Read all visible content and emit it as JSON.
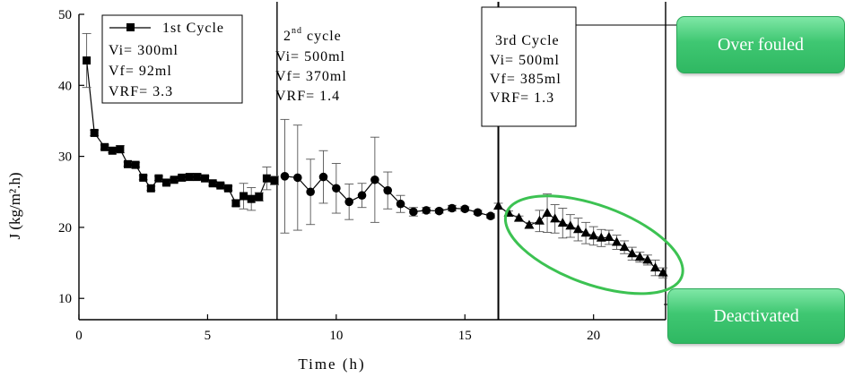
{
  "chart_data": {
    "type": "scatter",
    "title": "",
    "xlabel": "Time (h)",
    "ylabel": "J (kg/m².h)",
    "xlim": [
      0,
      22.8
    ],
    "ylim": [
      7,
      50
    ],
    "xticks": [
      0,
      5,
      10,
      15,
      20
    ],
    "yticks": [
      10,
      20,
      30,
      40,
      50
    ],
    "cycle_boundaries": [
      7.7,
      16.3,
      22.8
    ],
    "series": [
      {
        "marker": "square",
        "x": [
          0.3,
          0.6,
          1.0,
          1.3,
          1.6,
          1.9,
          2.2,
          2.5,
          2.8,
          3.1,
          3.4,
          3.7,
          4.0,
          4.3,
          4.6,
          4.9,
          5.2,
          5.5,
          5.8,
          6.1,
          6.4,
          6.7,
          7.0,
          7.3,
          7.6
        ],
        "y": [
          43.5,
          33.3,
          31.3,
          30.8,
          31.0,
          28.9,
          28.8,
          27.0,
          25.5,
          26.9,
          26.3,
          26.7,
          27.0,
          27.1,
          27.1,
          26.9,
          26.2,
          25.9,
          25.5,
          23.4,
          24.4,
          24.0,
          24.3,
          26.9,
          26.6
        ],
        "err": [
          3.8,
          0.4,
          0.3,
          0.3,
          0.5,
          0.3,
          0.3,
          0.3,
          0.3,
          0.3,
          0.3,
          0.3,
          0.3,
          0.3,
          0.3,
          0.3,
          0.3,
          0.3,
          0.3,
          0.4,
          1.8,
          1.6,
          0.6,
          1.6,
          0.6
        ]
      },
      {
        "marker": "circle",
        "x": [
          8.0,
          8.5,
          9.0,
          9.5,
          10.0,
          10.5,
          11.0,
          11.5,
          12.0,
          12.5,
          13.0,
          13.5,
          14.0,
          14.5,
          15.0,
          15.5,
          16.0
        ],
        "y": [
          27.2,
          27.0,
          25.0,
          27.1,
          25.5,
          23.6,
          24.5,
          26.7,
          25.2,
          23.3,
          22.2,
          22.4,
          22.3,
          22.7,
          22.6,
          22.1,
          21.6
        ],
        "err": [
          8.0,
          7.4,
          4.6,
          3.7,
          3.5,
          2.5,
          1.7,
          6.0,
          2.6,
          1.2,
          0.6,
          0.4,
          0.3,
          0.4,
          0.3,
          0.3,
          0.3
        ]
      },
      {
        "marker": "triangle",
        "x": [
          16.3,
          16.7,
          17.1,
          17.5,
          17.9,
          18.2,
          18.5,
          18.8,
          19.1,
          19.4,
          19.7,
          20.0,
          20.3,
          20.6,
          20.9,
          21.2,
          21.5,
          21.8,
          22.1,
          22.4,
          22.7
        ],
        "y": [
          23.0,
          22.0,
          21.3,
          20.3,
          20.9,
          22.0,
          21.2,
          20.6,
          20.2,
          19.7,
          19.2,
          18.8,
          18.5,
          18.6,
          17.9,
          17.2,
          16.3,
          15.8,
          15.4,
          14.3,
          13.6
        ],
        "err": [
          0.4,
          0.3,
          0.3,
          0.4,
          1.5,
          2.7,
          2.0,
          2.1,
          1.6,
          1.6,
          1.5,
          1.3,
          1.2,
          1.0,
          1.0,
          0.9,
          0.9,
          0.7,
          0.7,
          1.1,
          0.7
        ]
      }
    ],
    "legend": {
      "label": "1st Cycle",
      "placement": "top-left"
    },
    "annotations": {
      "cycle1": {
        "lines": [
          "Vi= 300ml",
          "Vf= 92ml",
          "VRF= 3.3"
        ]
      },
      "cycle2": {
        "title": "2",
        "title_sup": "nd",
        "title_rest": " cycle",
        "lines": [
          "Vi= 500ml",
          "Vf= 370ml",
          "VRF= 1.4"
        ]
      },
      "cycle3": {
        "title": "3rd Cycle",
        "lines": [
          "Vi= 500ml",
          "Vf= 385ml",
          "VRF= 1.3"
        ]
      }
    },
    "highlight": {
      "shape": "ellipse",
      "color": "#3cc252"
    },
    "callouts": {
      "top": "Over fouled",
      "bottom": "Deactivated"
    }
  }
}
